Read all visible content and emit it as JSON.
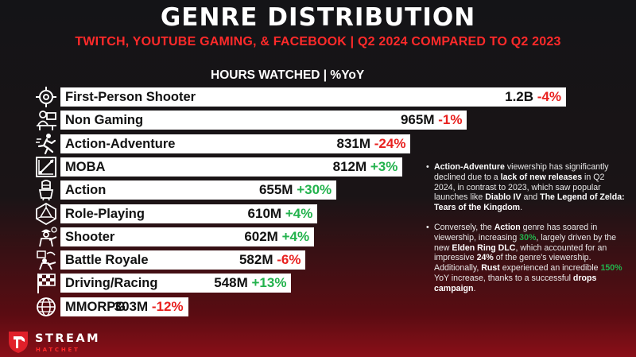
{
  "header": {
    "title": "GENRE DISTRIBUTION",
    "subtitle": "TWITCH, YOUTUBE GAMING, & FACEBOOK | Q2 2024 COMPARED TO Q2 2023",
    "column_header": "HOURS WATCHED |  %YoY"
  },
  "chart_data": {
    "type": "bar",
    "orientation": "horizontal",
    "categories": [
      "First-Person Shooter",
      "Non Gaming",
      "Action-Adventure",
      "MOBA",
      "Action",
      "Role-Playing",
      "Shooter",
      "Battle Royale",
      "Driving/Racing",
      "MMORPG"
    ],
    "values": [
      1200,
      965,
      831,
      812,
      655,
      610,
      602,
      582,
      548,
      303
    ],
    "value_unit": "M hours",
    "value_labels": [
      "1.2B",
      "965M",
      "831M",
      "812M",
      "655M",
      "610M",
      "602M",
      "582M",
      "548M",
      "303M"
    ],
    "yoy_labels": [
      "-4%",
      "-1%",
      "-24%",
      "+3%",
      "+30%",
      "+4%",
      "+4%",
      "-6%",
      "+13%",
      "-12%"
    ],
    "yoy": [
      -4,
      -1,
      -24,
      3,
      30,
      4,
      4,
      -6,
      13,
      -12
    ],
    "icons": [
      "crosshair-icon",
      "streamer-desk-icon",
      "running-figure-icon",
      "moba-map-icon",
      "knight-icon",
      "d20-dice-icon",
      "soldier-icon",
      "battle-royale-icon",
      "checkered-flag-icon",
      "globe-icon"
    ],
    "grid": false,
    "legend": "none"
  },
  "notes": [
    {
      "segments": [
        {
          "t": "Action-Adventure",
          "s": "b"
        },
        {
          "t": " viewership has significantly declined due to a ",
          "s": ""
        },
        {
          "t": "lack of new releases",
          "s": "b"
        },
        {
          "t": " in Q2 2024, in contrast to 2023, which saw popular launches like ",
          "s": ""
        },
        {
          "t": "Diablo IV",
          "s": "b"
        },
        {
          "t": " and ",
          "s": ""
        },
        {
          "t": "The Legend of Zelda: Tears of the Kingdom",
          "s": "b"
        },
        {
          "t": ".",
          "s": ""
        }
      ]
    },
    {
      "segments": [
        {
          "t": "Conversely, the ",
          "s": ""
        },
        {
          "t": "Action",
          "s": "b"
        },
        {
          "t": " genre has soared in viewership, increasing ",
          "s": ""
        },
        {
          "t": "30%",
          "s": "g"
        },
        {
          "t": ", largely driven by the new ",
          "s": ""
        },
        {
          "t": "Elden Ring DLC",
          "s": "b"
        },
        {
          "t": ", which accounted for an impressive ",
          "s": ""
        },
        {
          "t": "24%",
          "s": "b"
        },
        {
          "t": " of the genre's viewership. Additionally, ",
          "s": ""
        },
        {
          "t": "Rust",
          "s": "b"
        },
        {
          "t": " experienced an incredible ",
          "s": ""
        },
        {
          "t": "150%",
          "s": "g"
        },
        {
          "t": " YoY increase, thanks to a successful ",
          "s": ""
        },
        {
          "t": "drops campaign",
          "s": "b"
        },
        {
          "t": ".",
          "s": ""
        }
      ]
    }
  ],
  "brand": {
    "name": "STREAM",
    "sub": "HATCHET",
    "accent": "#ff2a2a",
    "positive": "#22b24c",
    "negative": "#e8211f"
  }
}
